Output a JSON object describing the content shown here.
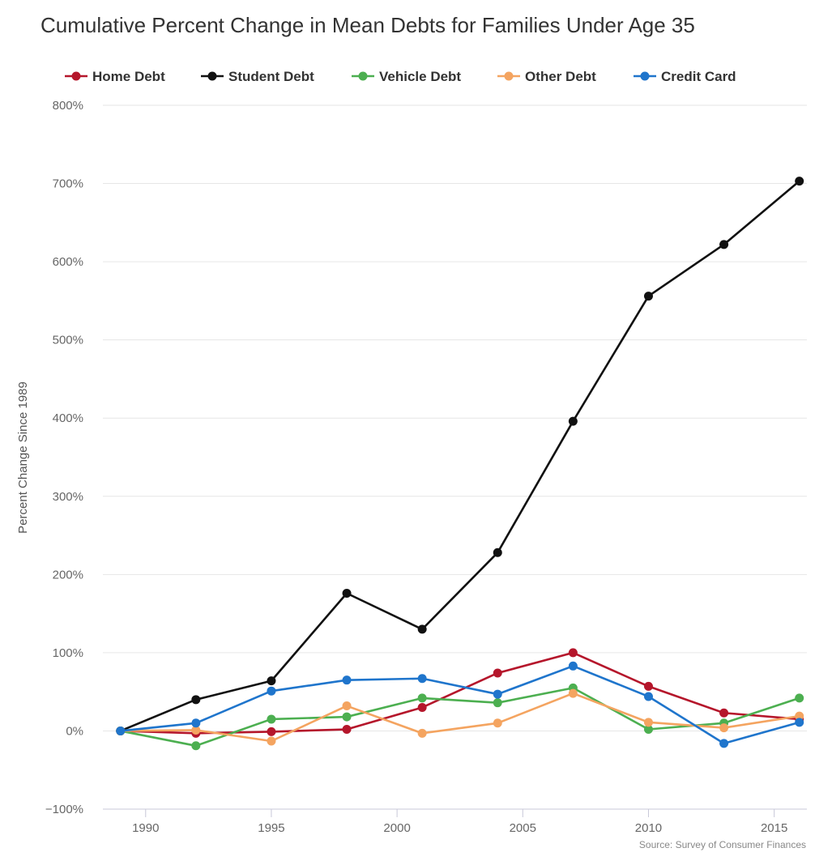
{
  "chart_data": {
    "type": "line",
    "title": "Cumulative Percent Change in Mean Debts for Families Under Age 35",
    "xlabel": "",
    "ylabel": "Percent Change Since 1989",
    "source": "Source: Survey of Consumer Finances",
    "x": [
      1989,
      1992,
      1995,
      1998,
      2001,
      2004,
      2007,
      2010,
      2013,
      2016
    ],
    "xlim": [
      1988.3,
      2016.3
    ],
    "ylim": [
      -100,
      800
    ],
    "x_ticks": [
      1990,
      1995,
      2000,
      2005,
      2010,
      2015
    ],
    "x_tick_labels": [
      "1990",
      "1995",
      "2000",
      "2005",
      "2010",
      "2015"
    ],
    "y_ticks": [
      -100,
      0,
      100,
      200,
      300,
      400,
      500,
      600,
      700,
      800
    ],
    "y_tick_labels": [
      "−100%",
      "0%",
      "100%",
      "200%",
      "300%",
      "400%",
      "500%",
      "600%",
      "700%",
      "800%"
    ],
    "legend_position": "top-left",
    "series": [
      {
        "name": "Home Debt",
        "color": "#b5162b",
        "values": [
          0,
          -3,
          -1,
          2,
          30,
          74,
          100,
          57,
          23,
          15
        ]
      },
      {
        "name": "Student Debt",
        "color": "#111111",
        "values": [
          0,
          40,
          64,
          176,
          130,
          228,
          396,
          556,
          622,
          703
        ]
      },
      {
        "name": "Vehicle Debt",
        "color": "#4caf50",
        "values": [
          0,
          -19,
          15,
          18,
          42,
          36,
          55,
          2,
          10,
          42
        ]
      },
      {
        "name": "Other Debt",
        "color": "#f4a460",
        "values": [
          0,
          1,
          -13,
          32,
          -3,
          10,
          48,
          11,
          4,
          19
        ]
      },
      {
        "name": "Credit Card",
        "color": "#1f75cc",
        "values": [
          0,
          10,
          51,
          65,
          67,
          47,
          83,
          44,
          -16,
          11
        ]
      }
    ]
  }
}
